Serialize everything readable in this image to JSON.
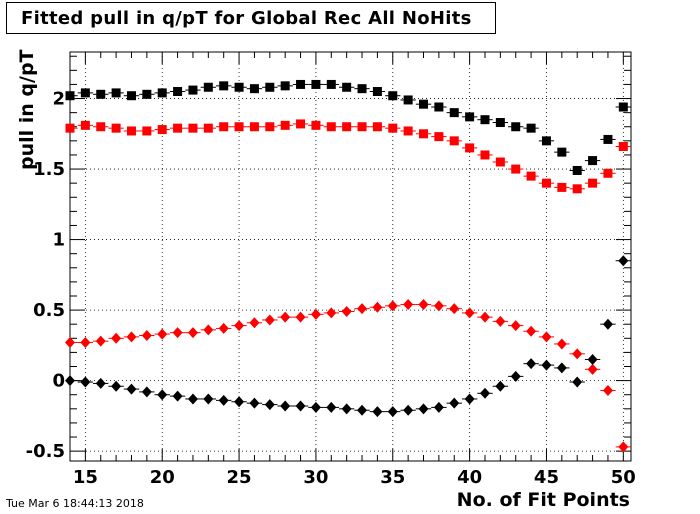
{
  "chart_data": {
    "type": "scatter",
    "title": "Fitted pull in q/pT for Global Rec All NoHits",
    "xlabel": "No. of Fit Points",
    "ylabel": "pull in q/pT",
    "xlim": [
      14,
      50.5
    ],
    "ylim": [
      -0.57,
      2.33
    ],
    "xticks": [
      15,
      20,
      25,
      30,
      35,
      40,
      45,
      50
    ],
    "yticks": [
      -0.5,
      0,
      0.5,
      1,
      1.5,
      2
    ],
    "grid": true,
    "x": [
      14,
      15,
      16,
      17,
      18,
      19,
      20,
      21,
      22,
      23,
      24,
      25,
      26,
      27,
      28,
      29,
      30,
      31,
      32,
      33,
      34,
      35,
      36,
      37,
      38,
      39,
      40,
      41,
      42,
      43,
      44,
      45,
      46,
      47,
      48,
      49,
      50
    ],
    "series": [
      {
        "color": "#000000",
        "marker": "square",
        "values": [
          2.02,
          2.04,
          2.03,
          2.04,
          2.02,
          2.03,
          2.04,
          2.05,
          2.06,
          2.08,
          2.09,
          2.08,
          2.07,
          2.08,
          2.09,
          2.1,
          2.1,
          2.1,
          2.08,
          2.07,
          2.05,
          2.02,
          1.99,
          1.96,
          1.94,
          1.9,
          1.87,
          1.85,
          1.83,
          1.8,
          1.79,
          1.7,
          1.62,
          1.49,
          1.56,
          1.71,
          1.94
        ]
      },
      {
        "color": "#ff0000",
        "marker": "square",
        "values": [
          1.79,
          1.81,
          1.8,
          1.79,
          1.77,
          1.77,
          1.78,
          1.79,
          1.79,
          1.79,
          1.8,
          1.8,
          1.8,
          1.8,
          1.81,
          1.82,
          1.81,
          1.8,
          1.8,
          1.8,
          1.8,
          1.79,
          1.77,
          1.75,
          1.73,
          1.7,
          1.65,
          1.6,
          1.55,
          1.5,
          1.45,
          1.4,
          1.37,
          1.36,
          1.4,
          1.47,
          1.66
        ]
      },
      {
        "color": "#ff0000",
        "marker": "diamond",
        "values": [
          0.27,
          0.27,
          0.28,
          0.3,
          0.31,
          0.32,
          0.33,
          0.34,
          0.34,
          0.36,
          0.37,
          0.39,
          0.41,
          0.43,
          0.45,
          0.45,
          0.47,
          0.48,
          0.49,
          0.51,
          0.52,
          0.53,
          0.54,
          0.54,
          0.53,
          0.51,
          0.48,
          0.45,
          0.42,
          0.39,
          0.35,
          0.31,
          0.26,
          0.19,
          0.08,
          -0.07,
          -0.47
        ]
      },
      {
        "color": "#000000",
        "marker": "diamond",
        "values": [
          0.0,
          -0.01,
          -0.02,
          -0.04,
          -0.06,
          -0.08,
          -0.1,
          -0.11,
          -0.13,
          -0.13,
          -0.14,
          -0.15,
          -0.16,
          -0.17,
          -0.18,
          -0.18,
          -0.19,
          -0.19,
          -0.2,
          -0.21,
          -0.22,
          -0.22,
          -0.21,
          -0.2,
          -0.19,
          -0.16,
          -0.13,
          -0.09,
          -0.04,
          0.03,
          0.12,
          0.11,
          0.09,
          -0.01,
          0.15,
          0.4,
          0.85
        ]
      }
    ]
  },
  "footer": {
    "datestamp": "Tue Mar  6 18:44:13 2018"
  }
}
